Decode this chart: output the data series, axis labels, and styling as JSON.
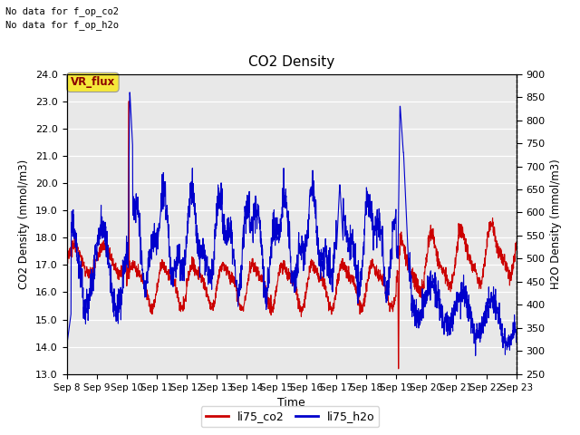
{
  "title": "CO2 Density",
  "xlabel": "Time",
  "ylabel_left": "CO2 Density (mmol/m3)",
  "ylabel_right": "H2O Density (mmol/m3)",
  "ylim_left": [
    13.0,
    24.0
  ],
  "ylim_right": [
    250,
    900
  ],
  "text_no_data_1": "No data for f_op_co2",
  "text_no_data_2": "No data for f_op_h2o",
  "legend_label_co2": "li75_co2",
  "legend_label_h2o": "li75_h2o",
  "vr_flux_label": "VR_flux",
  "fig_bg_color": "#ffffff",
  "plot_bg_color": "#e8e8e8",
  "co2_color": "#cc0000",
  "h2o_color": "#0000cc",
  "x_tick_labels": [
    "Sep 8",
    "Sep 9",
    "Sep 10",
    "Sep 11",
    "Sep 12",
    "Sep 13",
    "Sep 14",
    "Sep 15",
    "Sep 16",
    "Sep 17",
    "Sep 18",
    "Sep 19",
    "Sep 20",
    "Sep 21",
    "Sep 22",
    "Sep 23"
  ],
  "n_points": 2000,
  "seed": 42
}
